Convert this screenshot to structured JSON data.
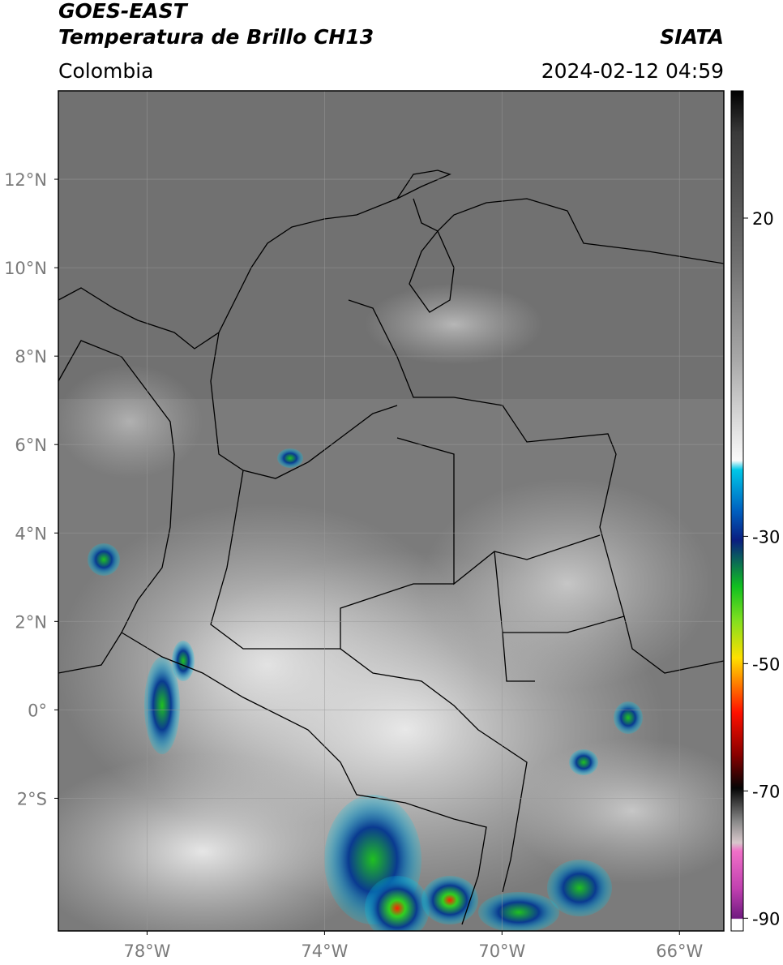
{
  "header": {
    "source": "GOES-EAST",
    "product": "Temperatura de Brillo CH13",
    "agency": "SIATA",
    "region": "Colombia",
    "timestamp": "2024-02-12 04:59"
  },
  "map": {
    "lonlim": [
      -80,
      -65
    ],
    "latlim": [
      -5,
      14
    ],
    "lat_ticks": [
      {
        "value": 12,
        "label": "12°N"
      },
      {
        "value": 10,
        "label": "10°N"
      },
      {
        "value": 8,
        "label": "8°N"
      },
      {
        "value": 6,
        "label": "6°N"
      },
      {
        "value": 4,
        "label": "4°N"
      },
      {
        "value": 2,
        "label": "2°N"
      },
      {
        "value": 0,
        "label": "0°"
      },
      {
        "value": -2,
        "label": "2°S"
      }
    ],
    "lon_ticks": [
      {
        "value": -78,
        "label": "78°W"
      },
      {
        "value": -74,
        "label": "74°W"
      },
      {
        "value": -70,
        "label": "70°W"
      },
      {
        "value": -66,
        "label": "66°W"
      }
    ],
    "grid": true
  },
  "colorbar": {
    "lim": [
      40,
      -92
    ],
    "ticks": [
      20,
      -30,
      -50,
      -70,
      -90
    ]
  }
}
